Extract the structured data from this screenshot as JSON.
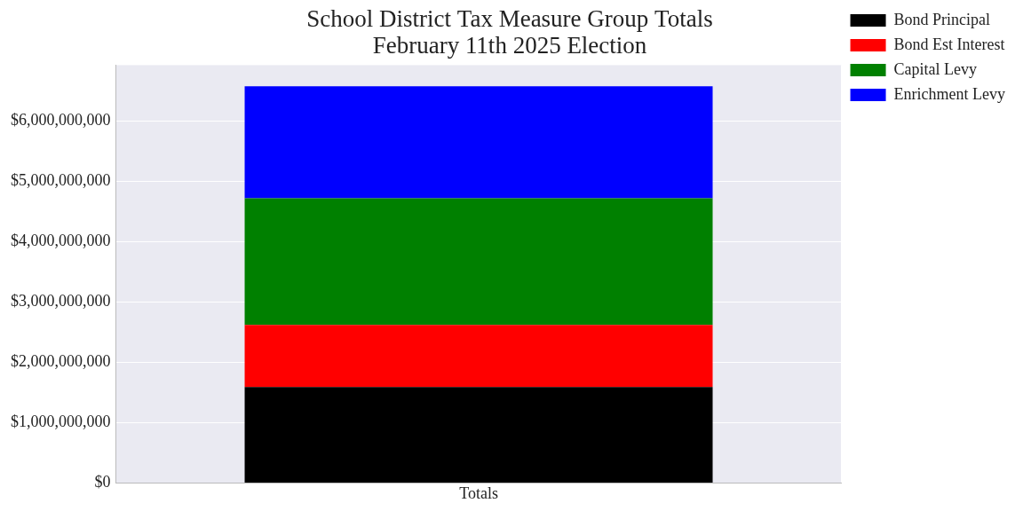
{
  "chart_data": {
    "type": "bar",
    "title": [
      "School District Tax Measure Group Totals",
      "February 11th 2025 Election"
    ],
    "categories": [
      "Totals"
    ],
    "series": [
      {
        "name": "Bond Principal",
        "color": "#000000",
        "values": [
          1590000000
        ]
      },
      {
        "name": "Bond Est Interest",
        "color": "#ff0000",
        "values": [
          1030000000
        ]
      },
      {
        "name": "Capital Levy",
        "color": "#008000",
        "values": [
          2100000000
        ]
      },
      {
        "name": "Enrichment Levy",
        "color": "#0000ff",
        "values": [
          1860000000
        ]
      }
    ],
    "stacked": true,
    "ylim": [
      0,
      6930000000
    ],
    "yticks": [
      {
        "value": 0,
        "label": "$0"
      },
      {
        "value": 1000000000,
        "label": "$1,000,000,000"
      },
      {
        "value": 2000000000,
        "label": "$2,000,000,000"
      },
      {
        "value": 3000000000,
        "label": "$3,000,000,000"
      },
      {
        "value": 4000000000,
        "label": "$4,000,000,000"
      },
      {
        "value": 5000000000,
        "label": "$5,000,000,000"
      },
      {
        "value": 6000000000,
        "label": "$6,000,000,000"
      }
    ],
    "grid": true,
    "legend": "right"
  }
}
